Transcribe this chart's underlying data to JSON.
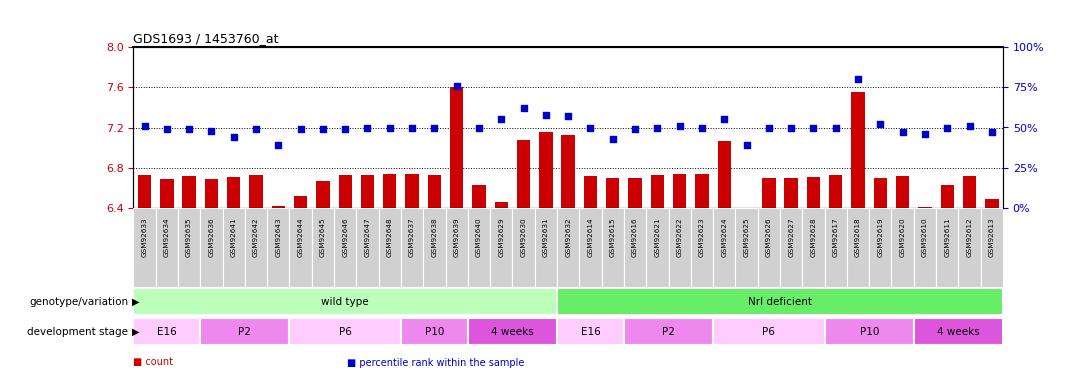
{
  "title": "GDS1693 / 1453760_at",
  "samples": [
    "GSM92633",
    "GSM92634",
    "GSM92635",
    "GSM92636",
    "GSM92641",
    "GSM92642",
    "GSM92643",
    "GSM92644",
    "GSM92645",
    "GSM92646",
    "GSM92647",
    "GSM92648",
    "GSM92637",
    "GSM92638",
    "GSM92639",
    "GSM92640",
    "GSM92629",
    "GSM92630",
    "GSM92631",
    "GSM92632",
    "GSM92614",
    "GSM92615",
    "GSM92616",
    "GSM92621",
    "GSM92622",
    "GSM92623",
    "GSM92624",
    "GSM92625",
    "GSM92626",
    "GSM92627",
    "GSM92628",
    "GSM92617",
    "GSM92618",
    "GSM92619",
    "GSM92620",
    "GSM92610",
    "GSM92611",
    "GSM92612",
    "GSM92613"
  ],
  "bar_values": [
    6.73,
    6.69,
    6.72,
    6.69,
    6.71,
    6.73,
    6.42,
    6.52,
    6.67,
    6.73,
    6.73,
    6.74,
    6.74,
    6.73,
    7.6,
    6.63,
    6.46,
    7.08,
    7.16,
    7.13,
    6.72,
    6.7,
    6.7,
    6.73,
    6.74,
    6.74,
    7.07,
    6.4,
    6.7,
    6.7,
    6.71,
    6.73,
    7.55,
    6.7,
    6.72,
    6.41,
    6.63,
    6.72,
    6.49
  ],
  "dot_values": [
    51,
    49,
    49,
    48,
    44,
    49,
    39,
    49,
    49,
    49,
    50,
    50,
    50,
    50,
    76,
    50,
    55,
    62,
    58,
    57,
    50,
    43,
    49,
    50,
    51,
    50,
    55,
    39,
    50,
    50,
    50,
    50,
    80,
    52,
    47,
    46,
    50,
    51,
    47
  ],
  "ylim_left": [
    6.4,
    8.0
  ],
  "ylim_right": [
    0,
    100
  ],
  "yticks_left": [
    6.4,
    6.8,
    7.2,
    7.6,
    8.0
  ],
  "yticks_right": [
    0,
    25,
    50,
    75,
    100
  ],
  "bar_color": "#cc0000",
  "dot_color": "#0000cc",
  "tick_bg_color": "#d0d0d0",
  "plot_bg": "#ffffff",
  "grid_levels": [
    6.8,
    7.2,
    7.6
  ],
  "genotype_row_label": "genotype/variation",
  "genotype_groups": [
    {
      "name": "wild type",
      "start": 0,
      "end": 19,
      "color": "#bbffbb"
    },
    {
      "name": "Nrl deficient",
      "start": 19,
      "end": 39,
      "color": "#66ee66"
    }
  ],
  "stage_row_label": "development stage",
  "stage_groups": [
    {
      "name": "E16",
      "start": 0,
      "end": 3,
      "color": "#ffccff"
    },
    {
      "name": "P2",
      "start": 3,
      "end": 7,
      "color": "#ee88ee"
    },
    {
      "name": "P6",
      "start": 7,
      "end": 12,
      "color": "#ffccff"
    },
    {
      "name": "P10",
      "start": 12,
      "end": 15,
      "color": "#ee88ee"
    },
    {
      "name": "4 weeks",
      "start": 15,
      "end": 19,
      "color": "#dd55dd"
    },
    {
      "name": "E16",
      "start": 19,
      "end": 22,
      "color": "#ffccff"
    },
    {
      "name": "P2",
      "start": 22,
      "end": 26,
      "color": "#ee88ee"
    },
    {
      "name": "P6",
      "start": 26,
      "end": 31,
      "color": "#ffccff"
    },
    {
      "name": "P10",
      "start": 31,
      "end": 35,
      "color": "#ee88ee"
    },
    {
      "name": "4 weeks",
      "start": 35,
      "end": 39,
      "color": "#dd55dd"
    }
  ],
  "legend_items": [
    {
      "label": "count",
      "color": "#cc0000"
    },
    {
      "label": "percentile rank within the sample",
      "color": "#0000cc"
    }
  ]
}
